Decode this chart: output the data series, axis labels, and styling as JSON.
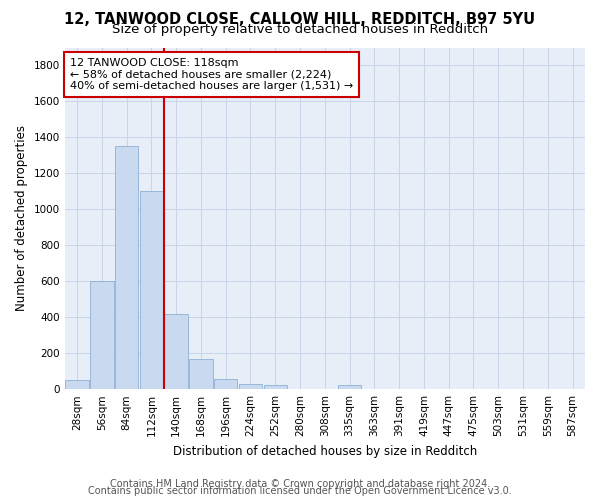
{
  "title_line1": "12, TANWOOD CLOSE, CALLOW HILL, REDDITCH, B97 5YU",
  "title_line2": "Size of property relative to detached houses in Redditch",
  "xlabel": "Distribution of detached houses by size in Redditch",
  "ylabel": "Number of detached properties",
  "categories": [
    "28sqm",
    "56sqm",
    "84sqm",
    "112sqm",
    "140sqm",
    "168sqm",
    "196sqm",
    "224sqm",
    "252sqm",
    "280sqm",
    "308sqm",
    "335sqm",
    "363sqm",
    "391sqm",
    "419sqm",
    "447sqm",
    "475sqm",
    "503sqm",
    "531sqm",
    "559sqm",
    "587sqm"
  ],
  "values": [
    50,
    600,
    1350,
    1100,
    420,
    170,
    55,
    30,
    25,
    0,
    0,
    25,
    0,
    0,
    0,
    0,
    0,
    0,
    0,
    0,
    0
  ],
  "bar_color": "#c9d9f0",
  "bar_edge_color": "#7fa8d0",
  "annotation_text": "12 TANWOOD CLOSE: 118sqm\n← 58% of detached houses are smaller (2,224)\n40% of semi-detached houses are larger (1,531) →",
  "annotation_box_color": "#ffffff",
  "annotation_box_edge": "#cc0000",
  "red_line_color": "#cc0000",
  "ylim": [
    0,
    1900
  ],
  "yticks": [
    0,
    200,
    400,
    600,
    800,
    1000,
    1200,
    1400,
    1600,
    1800
  ],
  "footer_line1": "Contains HM Land Registry data © Crown copyright and database right 2024.",
  "footer_line2": "Contains public sector information licensed under the Open Government Licence v3.0.",
  "bg_color": "#ffffff",
  "plot_bg_color": "#e8eef8",
  "grid_color": "#c8d4e8",
  "title_fontsize": 10.5,
  "subtitle_fontsize": 9.5,
  "axis_label_fontsize": 8.5,
  "tick_fontsize": 7.5,
  "footer_fontsize": 7,
  "annot_fontsize": 8
}
